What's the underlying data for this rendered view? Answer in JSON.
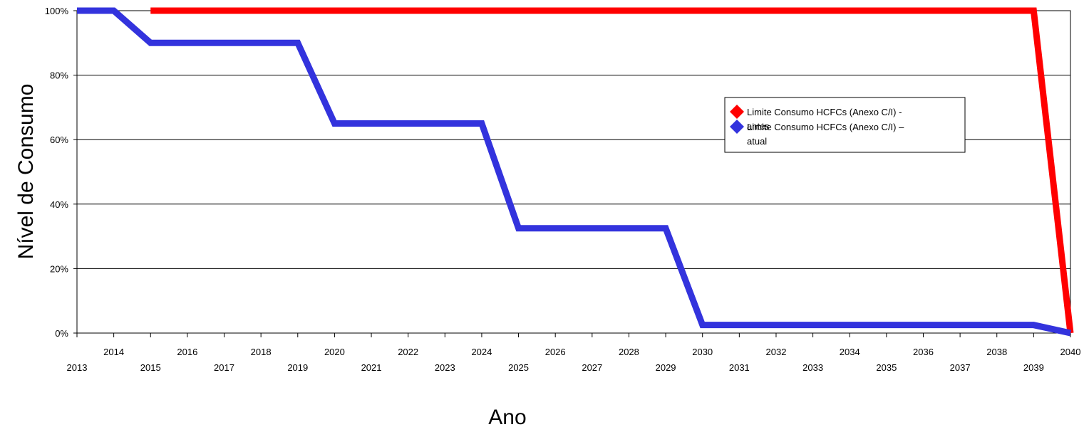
{
  "chart_data": {
    "type": "line",
    "title": "",
    "xlabel": "Ano",
    "ylabel": "Nível de Consumo",
    "x": [
      2013,
      2014,
      2015,
      2016,
      2017,
      2018,
      2019,
      2020,
      2021,
      2022,
      2023,
      2024,
      2025,
      2026,
      2027,
      2028,
      2029,
      2030,
      2031,
      2032,
      2033,
      2034,
      2035,
      2036,
      2037,
      2038,
      2039,
      2040
    ],
    "xlim": [
      2013,
      2040
    ],
    "ylim": [
      0,
      100
    ],
    "y_ticks": [
      0,
      20,
      40,
      60,
      80,
      100
    ],
    "y_tick_labels": [
      "0%",
      "20%",
      "40%",
      "60%",
      "80%",
      "100%"
    ],
    "grid": "horizontal",
    "legend_position": "right",
    "series": [
      {
        "name": "Limite Consumo HCFCs (Anexo C/I) - antes",
        "legend_lines": [
          "Limite Consumo HCFCs (Anexo C/I) -",
          "antes"
        ],
        "color": "#ff0000",
        "x": [
          2015,
          2016,
          2017,
          2018,
          2019,
          2020,
          2021,
          2022,
          2023,
          2024,
          2025,
          2026,
          2027,
          2028,
          2029,
          2030,
          2031,
          2032,
          2033,
          2034,
          2035,
          2036,
          2037,
          2038,
          2039,
          2040
        ],
        "values": [
          100,
          100,
          100,
          100,
          100,
          100,
          100,
          100,
          100,
          100,
          100,
          100,
          100,
          100,
          100,
          100,
          100,
          100,
          100,
          100,
          100,
          100,
          100,
          100,
          100,
          0
        ]
      },
      {
        "name": "Limite Consumo HCFCs (Anexo C/I) – atual",
        "legend_lines": [
          "Limite Consumo HCFCs (Anexo C/I) –",
          "atual"
        ],
        "color": "#3333dd",
        "x": [
          2013,
          2014,
          2015,
          2016,
          2017,
          2018,
          2019,
          2020,
          2021,
          2022,
          2023,
          2024,
          2025,
          2026,
          2027,
          2028,
          2029,
          2030,
          2031,
          2032,
          2033,
          2034,
          2035,
          2036,
          2037,
          2038,
          2039,
          2040
        ],
        "values": [
          100,
          100,
          90,
          90,
          90,
          90,
          90,
          65,
          65,
          65,
          65,
          65,
          32.5,
          32.5,
          32.5,
          32.5,
          32.5,
          2.5,
          2.5,
          2.5,
          2.5,
          2.5,
          2.5,
          2.5,
          2.5,
          2.5,
          2.5,
          0
        ]
      }
    ]
  }
}
